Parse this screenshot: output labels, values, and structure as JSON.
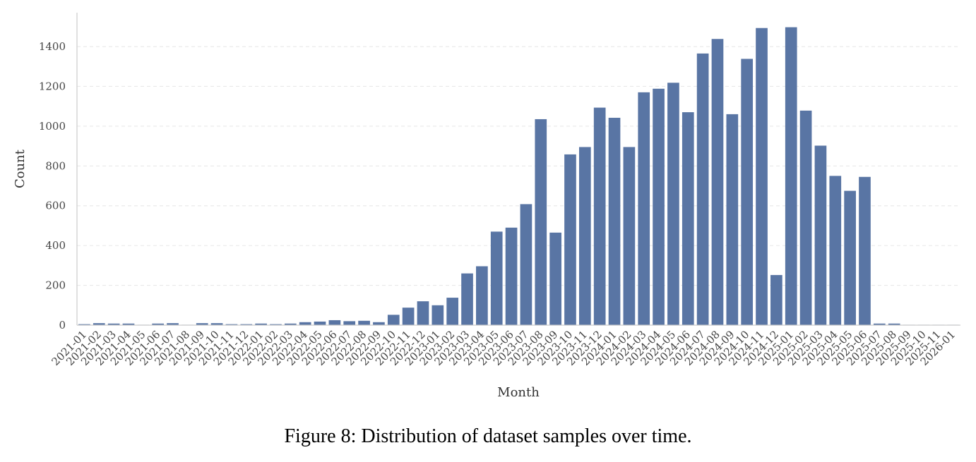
{
  "figure": {
    "caption": "Figure 8: Distribution of dataset samples over time."
  },
  "chart_data": {
    "type": "bar",
    "title": "",
    "xlabel": "Month",
    "ylabel": "Count",
    "ylim": [
      0,
      1570
    ],
    "yticks": [
      0,
      200,
      400,
      600,
      800,
      1000,
      1200,
      1400
    ],
    "grid": "horizontal-dashed",
    "bar_color": "#5975a4",
    "categories": [
      "2021-01",
      "2021-02",
      "2021-03",
      "2021-04",
      "2021-05",
      "2021-06",
      "2021-07",
      "2021-08",
      "2021-09",
      "2021-10",
      "2021-11",
      "2021-12",
      "2022-01",
      "2022-02",
      "2022-03",
      "2022-04",
      "2022-05",
      "2022-06",
      "2022-07",
      "2022-08",
      "2022-09",
      "2022-10",
      "2022-11",
      "2022-12",
      "2023-01",
      "2023-02",
      "2023-03",
      "2023-04",
      "2023-05",
      "2023-06",
      "2023-07",
      "2023-08",
      "2023-09",
      "2023-10",
      "2023-11",
      "2023-12",
      "2024-01",
      "2024-02",
      "2024-03",
      "2024-04",
      "2024-05",
      "2024-06",
      "2024-07",
      "2024-08",
      "2024-09",
      "2024-10",
      "2024-11",
      "2024-12",
      "2025-01",
      "2025-02",
      "2025-03",
      "2025-04",
      "2025-05",
      "2025-06",
      "2025-07",
      "2025-08",
      "2025-09",
      "2025-10",
      "2025-11",
      "2026-01"
    ],
    "values": [
      5,
      10,
      8,
      8,
      2,
      8,
      10,
      2,
      10,
      10,
      5,
      5,
      8,
      5,
      8,
      15,
      18,
      25,
      20,
      22,
      15,
      52,
      88,
      120,
      100,
      138,
      260,
      296,
      470,
      490,
      608,
      1035,
      465,
      858,
      895,
      1093,
      1042,
      895,
      1170,
      1188,
      1218,
      1070,
      1365,
      1438,
      1060,
      1338,
      1493,
      252,
      1497,
      1078,
      902,
      750,
      675,
      745,
      8,
      8,
      2,
      2,
      2,
      2
    ]
  }
}
